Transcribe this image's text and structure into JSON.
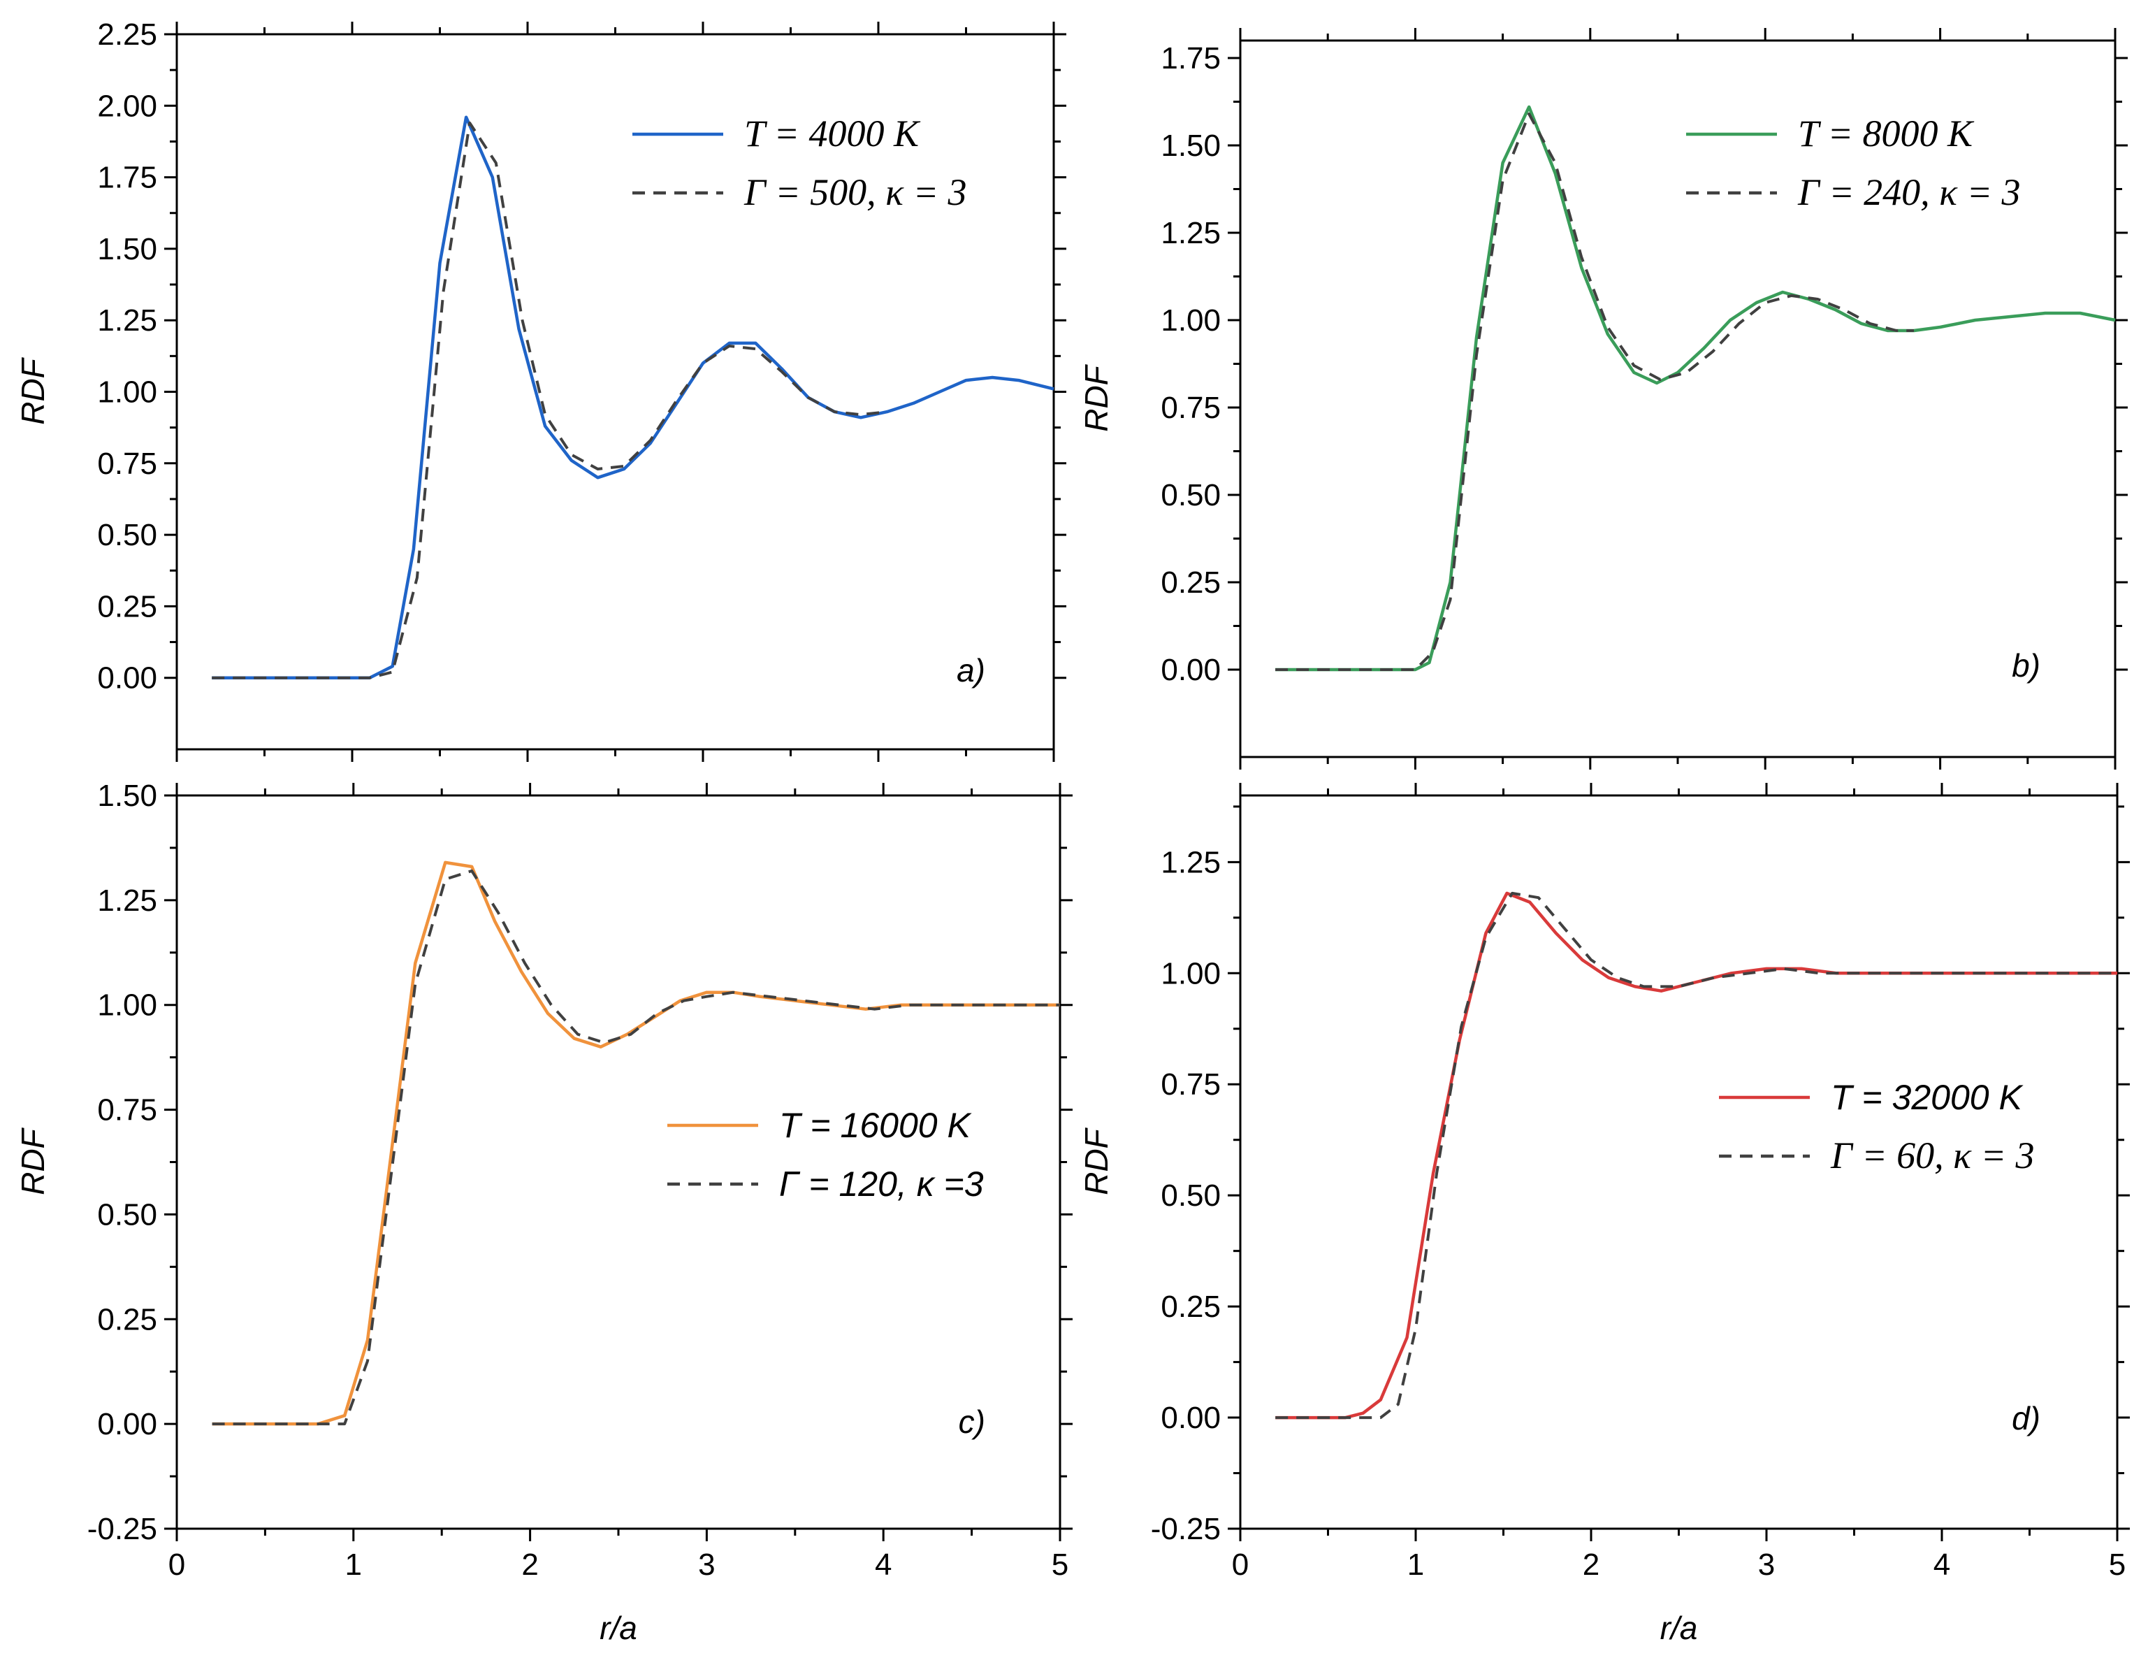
{
  "chart_data": [
    {
      "type": "line",
      "panel": "a)",
      "xlabel": "",
      "ylabel": "RDF",
      "xlim": [
        0,
        5
      ],
      "ylim": [
        -0.25,
        2.25
      ],
      "yticks": [
        "0.00",
        "0.25",
        "0.50",
        "0.75",
        "1.00",
        "1.25",
        "1.50",
        "1.75",
        "2.00",
        "2.25"
      ],
      "xticks": [],
      "legend_position": "top-right",
      "legend_style": "serif",
      "series": [
        {
          "name": "T = 4000 K",
          "color": "#1f64c8",
          "style": "solid",
          "x": [
            0.2,
            1.1,
            1.23,
            1.35,
            1.5,
            1.65,
            1.8,
            1.95,
            2.1,
            2.25,
            2.4,
            2.55,
            2.7,
            2.85,
            3.0,
            3.15,
            3.3,
            3.45,
            3.6,
            3.75,
            3.9,
            4.05,
            4.2,
            4.35,
            4.5,
            4.65,
            4.8,
            5.0
          ],
          "y": [
            0.0,
            0.0,
            0.04,
            0.45,
            1.45,
            1.96,
            1.75,
            1.22,
            0.88,
            0.76,
            0.7,
            0.73,
            0.82,
            0.96,
            1.1,
            1.17,
            1.17,
            1.08,
            0.98,
            0.93,
            0.91,
            0.93,
            0.96,
            1.0,
            1.04,
            1.05,
            1.04,
            1.01
          ]
        },
        {
          "name": "Γ = 500, κ = 3",
          "color": "#404040",
          "style": "dashed",
          "x": [
            0.2,
            1.1,
            1.23,
            1.37,
            1.52,
            1.67,
            1.82,
            1.97,
            2.1,
            2.25,
            2.4,
            2.55,
            2.7,
            2.85,
            3.0,
            3.15,
            3.3,
            3.45,
            3.6,
            3.75,
            3.9,
            4.05
          ],
          "y": [
            0.0,
            0.0,
            0.02,
            0.35,
            1.35,
            1.94,
            1.8,
            1.25,
            0.92,
            0.78,
            0.73,
            0.74,
            0.83,
            0.97,
            1.1,
            1.16,
            1.15,
            1.07,
            0.98,
            0.93,
            0.92,
            0.93
          ]
        }
      ]
    },
    {
      "type": "line",
      "panel": "b)",
      "xlabel": "",
      "ylabel": "RDF",
      "xlim": [
        0,
        5
      ],
      "ylim": [
        -0.25,
        1.8
      ],
      "yticks": [
        "0.00",
        "0.25",
        "0.50",
        "0.75",
        "1.00",
        "1.25",
        "1.50",
        "1.75"
      ],
      "xticks": [],
      "legend_position": "top-right",
      "legend_style": "serif",
      "series": [
        {
          "name": "T = 8000 K",
          "color": "#3a9d5a",
          "style": "solid",
          "x": [
            0.2,
            1.0,
            1.08,
            1.2,
            1.35,
            1.5,
            1.65,
            1.8,
            1.95,
            2.1,
            2.25,
            2.38,
            2.5,
            2.65,
            2.8,
            2.95,
            3.1,
            3.25,
            3.4,
            3.55,
            3.7,
            3.85,
            4.0,
            4.2,
            4.4,
            4.6,
            4.8,
            5.0
          ],
          "y": [
            0.0,
            0.0,
            0.02,
            0.25,
            0.95,
            1.45,
            1.61,
            1.42,
            1.15,
            0.96,
            0.85,
            0.82,
            0.85,
            0.92,
            1.0,
            1.05,
            1.08,
            1.06,
            1.03,
            0.99,
            0.97,
            0.97,
            0.98,
            1.0,
            1.01,
            1.02,
            1.02,
            1.0
          ]
        },
        {
          "name": "Γ = 240, κ = 3",
          "color": "#404040",
          "style": "dashed",
          "x": [
            0.2,
            1.0,
            1.1,
            1.2,
            1.35,
            1.5,
            1.65,
            1.8,
            1.95,
            2.1,
            2.25,
            2.4,
            2.55,
            2.7,
            2.85,
            3.0,
            3.15,
            3.3,
            3.45,
            3.6,
            3.75,
            3.85
          ],
          "y": [
            0.0,
            0.0,
            0.05,
            0.2,
            0.9,
            1.4,
            1.59,
            1.45,
            1.18,
            0.98,
            0.87,
            0.83,
            0.85,
            0.91,
            0.99,
            1.05,
            1.07,
            1.06,
            1.03,
            0.99,
            0.97,
            0.97
          ]
        }
      ]
    },
    {
      "type": "line",
      "panel": "c)",
      "xlabel": "r/a",
      "ylabel": "RDF",
      "xlim": [
        0,
        5
      ],
      "ylim": [
        -0.25,
        1.5
      ],
      "yticks": [
        "-0.25",
        "0.00",
        "0.25",
        "0.50",
        "0.75",
        "1.00",
        "1.25",
        "1.50"
      ],
      "xticks": [
        "0",
        "1",
        "2",
        "3",
        "4",
        "5"
      ],
      "legend_position": "center-right",
      "legend_style": "sans",
      "series": [
        {
          "name": "T = 16000 K",
          "color": "#f0923c",
          "style": "solid",
          "x": [
            0.2,
            0.8,
            0.95,
            1.08,
            1.2,
            1.35,
            1.52,
            1.67,
            1.8,
            1.95,
            2.1,
            2.25,
            2.4,
            2.55,
            2.7,
            2.85,
            3.0,
            3.15,
            3.3,
            3.5,
            3.7,
            3.9,
            4.1,
            4.3,
            4.5,
            4.7,
            5.0
          ],
          "y": [
            0.0,
            0.0,
            0.02,
            0.2,
            0.6,
            1.1,
            1.34,
            1.33,
            1.2,
            1.08,
            0.98,
            0.92,
            0.9,
            0.93,
            0.97,
            1.01,
            1.03,
            1.03,
            1.02,
            1.01,
            1.0,
            0.99,
            1.0,
            1.0,
            1.0,
            1.0,
            1.0
          ]
        },
        {
          "name": "Γ = 120, κ =3",
          "color": "#404040",
          "style": "dashed",
          "x": [
            0.2,
            0.8,
            0.95,
            1.08,
            1.2,
            1.35,
            1.52,
            1.67,
            1.82,
            1.97,
            2.12,
            2.27,
            2.42,
            2.57,
            2.72,
            2.87,
            3.0,
            3.15,
            3.35,
            3.55,
            3.75,
            3.95,
            4.15,
            4.35,
            4.55,
            4.75,
            5.0
          ],
          "y": [
            0.0,
            0.0,
            0.0,
            0.15,
            0.55,
            1.05,
            1.3,
            1.32,
            1.22,
            1.1,
            1.0,
            0.93,
            0.91,
            0.93,
            0.98,
            1.01,
            1.02,
            1.03,
            1.02,
            1.01,
            1.0,
            0.99,
            1.0,
            1.0,
            1.0,
            1.0,
            1.0
          ]
        }
      ]
    },
    {
      "type": "line",
      "panel": "d)",
      "xlabel": "r/a",
      "ylabel": "RDF",
      "xlim": [
        0,
        5
      ],
      "ylim": [
        -0.25,
        1.4
      ],
      "yticks": [
        "-0.25",
        "0.00",
        "0.25",
        "0.50",
        "0.75",
        "1.00",
        "1.25"
      ],
      "xticks": [
        "0",
        "1",
        "2",
        "3",
        "4",
        "5"
      ],
      "legend_position": "center-right",
      "legend_style": "mixed",
      "series": [
        {
          "name": "T = 32000 K",
          "color": "#d93a3a",
          "style": "solid",
          "x": [
            0.2,
            0.6,
            0.7,
            0.8,
            0.95,
            1.1,
            1.25,
            1.4,
            1.52,
            1.65,
            1.8,
            1.95,
            2.1,
            2.25,
            2.4,
            2.6,
            2.8,
            3.0,
            3.2,
            3.4,
            3.6,
            3.8,
            4.0,
            4.3,
            4.6,
            5.0
          ],
          "y": [
            0.0,
            0.0,
            0.01,
            0.04,
            0.18,
            0.55,
            0.85,
            1.09,
            1.18,
            1.16,
            1.09,
            1.03,
            0.99,
            0.97,
            0.96,
            0.98,
            1.0,
            1.01,
            1.01,
            1.0,
            1.0,
            1.0,
            1.0,
            1.0,
            1.0,
            1.0
          ]
        },
        {
          "name": "Γ = 60, κ = 3",
          "color": "#404040",
          "style": "dashed",
          "x": [
            0.2,
            0.8,
            0.9,
            1.0,
            1.12,
            1.26,
            1.4,
            1.55,
            1.7,
            1.85,
            2.0,
            2.15,
            2.3,
            2.5,
            2.7,
            2.9,
            3.1,
            3.3,
            3.5,
            3.7,
            3.9,
            4.1,
            4.4,
            4.7,
            5.0
          ],
          "y": [
            0.0,
            0.0,
            0.03,
            0.2,
            0.55,
            0.88,
            1.08,
            1.18,
            1.17,
            1.1,
            1.03,
            0.99,
            0.97,
            0.97,
            0.99,
            1.0,
            1.01,
            1.0,
            1.0,
            1.0,
            1.0,
            1.0,
            1.0,
            1.0,
            1.0
          ]
        }
      ]
    }
  ]
}
